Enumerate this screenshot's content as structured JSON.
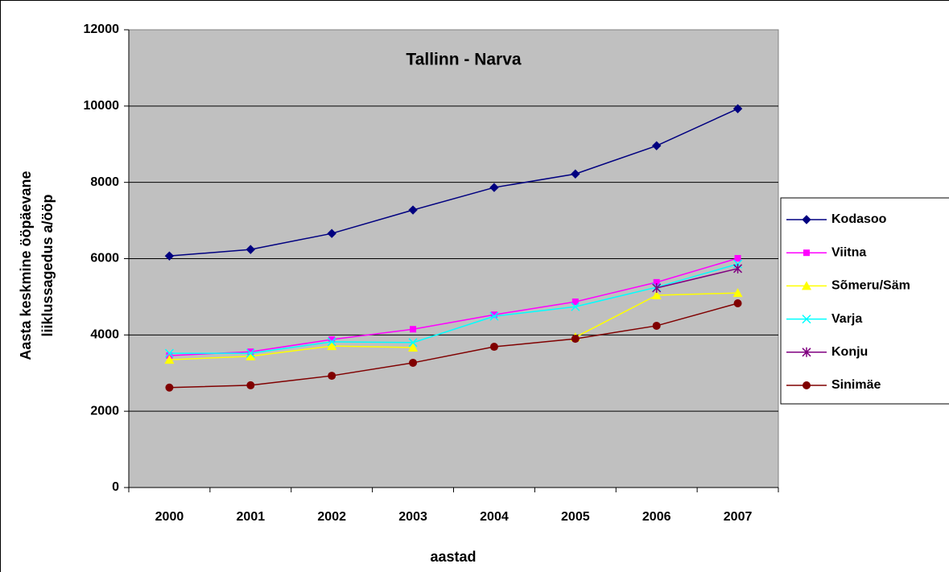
{
  "chart_data": {
    "type": "line",
    "title": "Tallinn - Narva",
    "xlabel": "aastad",
    "ylabel": [
      "Aasta keskmine ööpäevane",
      "liiklussagedus a/ööp"
    ],
    "categories": [
      "2000",
      "2001",
      "2002",
      "2003",
      "2004",
      "2005",
      "2006",
      "2007"
    ],
    "series": [
      {
        "name": "Kodasoo",
        "color": "#000080",
        "marker": "diamond",
        "values": [
          6070,
          6240,
          6660,
          7275,
          7865,
          8220,
          8960,
          9930
        ]
      },
      {
        "name": "Viitna",
        "color": "#ff00ff",
        "marker": "square",
        "values": [
          3460,
          3560,
          3880,
          4150,
          4530,
          4870,
          5380,
          6010
        ]
      },
      {
        "name": "Sõmeru/Säm",
        "color": "#ffff00",
        "marker": "triangle",
        "values": [
          3350,
          3440,
          3710,
          3670,
          null,
          3940,
          5040,
          5100
        ]
      },
      {
        "name": "Varja",
        "color": "#00ffff",
        "marker": "x",
        "values": [
          3520,
          3520,
          3820,
          3800,
          4490,
          4740,
          5250,
          5860
        ]
      },
      {
        "name": "Konju",
        "color": "#800080",
        "marker": "star",
        "values": [
          null,
          null,
          null,
          null,
          null,
          null,
          5230,
          5740
        ]
      },
      {
        "name": "Sinimäe",
        "color": "#800000",
        "marker": "circle",
        "values": [
          2620,
          2680,
          2930,
          3270,
          3690,
          3900,
          4240,
          4830
        ]
      }
    ],
    "ylim": [
      0,
      12000
    ],
    "yticks": [
      0,
      2000,
      4000,
      6000,
      8000,
      10000,
      12000
    ],
    "grid": true,
    "plot_background": "#c0c0c0",
    "legend": "right"
  }
}
